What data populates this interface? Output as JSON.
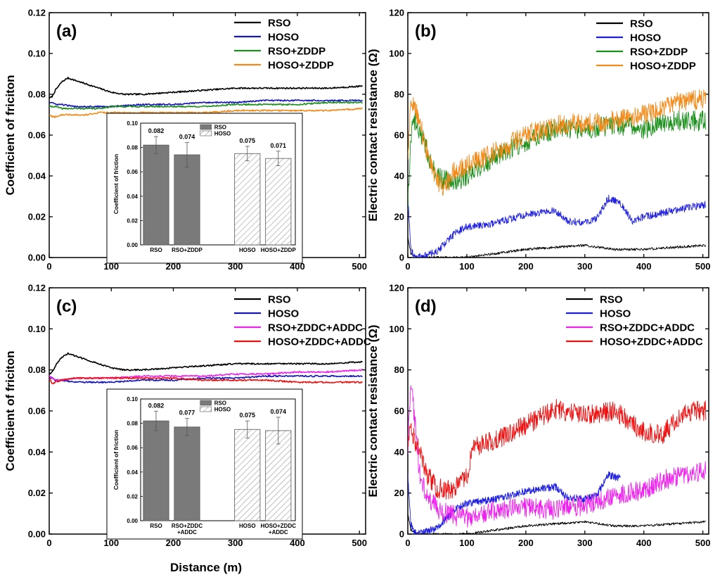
{
  "figure": {
    "xlabel_bottom": "Distance (m)"
  },
  "chart_data": [
    {
      "panel": "(a)",
      "type": "line",
      "xlabel": "",
      "ylabel": "Coefficient of friciton",
      "xlim": [
        0,
        510
      ],
      "ylim": [
        0,
        0.12
      ],
      "xticks": [
        "0",
        "100",
        "200",
        "300",
        "400",
        "500"
      ],
      "yticks": [
        "0.00",
        "0.02",
        "0.04",
        "0.06",
        "0.08",
        "0.10",
        "0.12"
      ],
      "legend": [
        "RSO",
        "HOSO",
        "RSO+ZDDP",
        "HOSO+ZDDP"
      ],
      "colors": [
        "#000000",
        "#1515b8",
        "#1a8f1a",
        "#f28a1a"
      ],
      "series": [
        {
          "name": "RSO",
          "x": [
            0,
            5,
            10,
            20,
            30,
            40,
            60,
            80,
            100,
            120,
            150,
            200,
            250,
            300,
            350,
            400,
            450,
            505
          ],
          "y": [
            0.078,
            0.079,
            0.082,
            0.086,
            0.088,
            0.087,
            0.085,
            0.083,
            0.081,
            0.08,
            0.08,
            0.081,
            0.082,
            0.083,
            0.083,
            0.083,
            0.083,
            0.084
          ]
        },
        {
          "name": "HOSO",
          "x": [
            0,
            5,
            10,
            20,
            40,
            60,
            80,
            100,
            150,
            200,
            250,
            300,
            350,
            400,
            450,
            505
          ],
          "y": [
            0.076,
            0.076,
            0.075,
            0.075,
            0.074,
            0.074,
            0.074,
            0.074,
            0.075,
            0.075,
            0.076,
            0.076,
            0.077,
            0.077,
            0.077,
            0.077
          ]
        },
        {
          "name": "RSO+ZDDP",
          "x": [
            0,
            5,
            10,
            20,
            40,
            60,
            80,
            100,
            150,
            200,
            250,
            300,
            350,
            400,
            450,
            505
          ],
          "y": [
            0.074,
            0.074,
            0.074,
            0.073,
            0.073,
            0.073,
            0.073,
            0.074,
            0.074,
            0.074,
            0.074,
            0.075,
            0.075,
            0.075,
            0.076,
            0.076
          ]
        },
        {
          "name": "HOSO+ZDDP",
          "x": [
            0,
            5,
            10,
            20,
            40,
            60,
            80,
            100,
            150,
            200,
            250,
            300,
            350,
            400,
            450,
            505
          ],
          "y": [
            0.07,
            0.069,
            0.069,
            0.07,
            0.07,
            0.07,
            0.071,
            0.071,
            0.071,
            0.071,
            0.071,
            0.072,
            0.072,
            0.072,
            0.072,
            0.073
          ]
        }
      ],
      "inset": {
        "type": "bar",
        "ylabel": "Coefficient of friction",
        "ylim": [
          0,
          0.1
        ],
        "yticks": [
          "0.00",
          "0.02",
          "0.04",
          "0.06",
          "0.08",
          "0.10"
        ],
        "legend": [
          "RSO",
          "HOSO"
        ],
        "categories": [
          "RSO",
          "RSO+ZDDP",
          "HOSO",
          "HOSO+ZDDP"
        ],
        "values": [
          0.082,
          0.074,
          0.075,
          0.071
        ],
        "value_labels": [
          "0.082",
          "0.074",
          "0.075",
          "0.071"
        ],
        "errors": [
          0.007,
          0.01,
          0.006,
          0.006
        ],
        "groups": [
          "RSO",
          "RSO",
          "HOSO",
          "HOSO"
        ]
      }
    },
    {
      "panel": "(b)",
      "type": "line",
      "xlabel": "",
      "ylabel": "Electric contact resistance (Ω)",
      "xlim": [
        0,
        510
      ],
      "ylim": [
        0,
        120
      ],
      "xticks": [
        "0",
        "100",
        "200",
        "300",
        "400",
        "500"
      ],
      "yticks": [
        "0",
        "20",
        "40",
        "60",
        "80",
        "100",
        "120"
      ],
      "legend": [
        "RSO",
        "HOSO",
        "RSO+ZDDP",
        "HOSO+ZDDP"
      ],
      "colors": [
        "#000000",
        "#1e1ee0",
        "#1a8f1a",
        "#f28a1a"
      ],
      "series": [
        {
          "name": "RSO",
          "x": [
            0,
            5,
            15,
            50,
            100,
            150,
            200,
            250,
            300,
            350,
            400,
            450,
            505
          ],
          "y": [
            10,
            2,
            0,
            0,
            0,
            2,
            4,
            5,
            6,
            4,
            4,
            5,
            6
          ]
        },
        {
          "name": "HOSO",
          "x": [
            0,
            5,
            10,
            15,
            30,
            50,
            80,
            100,
            150,
            200,
            250,
            270,
            300,
            320,
            340,
            360,
            380,
            400,
            450,
            505
          ],
          "y": [
            30,
            5,
            1,
            0,
            1,
            3,
            12,
            15,
            17,
            21,
            23,
            18,
            17,
            19,
            29,
            27,
            18,
            20,
            23,
            26
          ]
        },
        {
          "name": "RSO+ZDDP",
          "x": [
            0,
            5,
            10,
            20,
            30,
            40,
            50,
            60,
            80,
            100,
            150,
            200,
            250,
            300,
            350,
            400,
            450,
            505
          ],
          "y": [
            25,
            60,
            68,
            62,
            55,
            45,
            40,
            38,
            37,
            40,
            50,
            57,
            63,
            63,
            65,
            63,
            67,
            67
          ]
        },
        {
          "name": "HOSO+ZDDP",
          "x": [
            0,
            5,
            10,
            20,
            30,
            40,
            50,
            60,
            80,
            100,
            150,
            200,
            250,
            300,
            350,
            400,
            450,
            505
          ],
          "y": [
            50,
            74,
            76,
            66,
            55,
            45,
            38,
            33,
            43,
            45,
            52,
            60,
            65,
            66,
            67,
            70,
            76,
            78
          ]
        }
      ]
    },
    {
      "panel": "(c)",
      "type": "line",
      "xlabel": "Distance (m)",
      "ylabel": "Coefficient of friciton",
      "xlim": [
        0,
        510
      ],
      "ylim": [
        0,
        0.12
      ],
      "xticks": [
        "0",
        "100",
        "200",
        "300",
        "400",
        "500"
      ],
      "yticks": [
        "0.00",
        "0.02",
        "0.04",
        "0.06",
        "0.08",
        "0.10",
        "0.12"
      ],
      "legend": [
        "RSO",
        "HOSO",
        "RSO+ZDDC+ADDC",
        "HOSO+ZDDC+ADDC"
      ],
      "colors": [
        "#000000",
        "#1515b8",
        "#ee22ee",
        "#ee1111"
      ],
      "series": [
        {
          "name": "RSO",
          "x": [
            0,
            5,
            10,
            20,
            30,
            40,
            60,
            80,
            100,
            120,
            150,
            200,
            250,
            300,
            350,
            400,
            450,
            505
          ],
          "y": [
            0.078,
            0.079,
            0.082,
            0.086,
            0.088,
            0.087,
            0.085,
            0.083,
            0.081,
            0.08,
            0.08,
            0.081,
            0.082,
            0.083,
            0.083,
            0.083,
            0.083,
            0.084
          ]
        },
        {
          "name": "HOSO",
          "x": [
            0,
            5,
            10,
            20,
            40,
            60,
            80,
            100,
            150,
            200,
            250,
            300,
            350,
            400,
            450,
            505
          ],
          "y": [
            0.076,
            0.076,
            0.075,
            0.075,
            0.074,
            0.074,
            0.074,
            0.074,
            0.075,
            0.075,
            0.076,
            0.076,
            0.077,
            0.077,
            0.077,
            0.077
          ]
        },
        {
          "name": "RSO+ZDDC+ADDC",
          "x": [
            0,
            5,
            10,
            20,
            40,
            60,
            80,
            100,
            150,
            200,
            250,
            300,
            350,
            400,
            450,
            505
          ],
          "y": [
            0.077,
            0.076,
            0.075,
            0.075,
            0.076,
            0.076,
            0.076,
            0.076,
            0.077,
            0.077,
            0.077,
            0.078,
            0.078,
            0.079,
            0.079,
            0.08
          ]
        },
        {
          "name": "HOSO+ZDDC+ADDC",
          "x": [
            0,
            5,
            10,
            20,
            40,
            60,
            80,
            100,
            150,
            200,
            250,
            300,
            350,
            400,
            450,
            505
          ],
          "y": [
            0.076,
            0.073,
            0.074,
            0.075,
            0.076,
            0.076,
            0.076,
            0.076,
            0.076,
            0.076,
            0.075,
            0.075,
            0.075,
            0.074,
            0.074,
            0.074
          ]
        }
      ],
      "inset": {
        "type": "bar",
        "ylabel": "Coefficient of friction",
        "ylim": [
          0,
          0.1
        ],
        "yticks": [
          "0.00",
          "0.02",
          "0.04",
          "0.06",
          "0.08",
          "0.10"
        ],
        "legend": [
          "RSO",
          "HOSO"
        ],
        "categories": [
          "RSO",
          "RSO+ZDDC +ADDC",
          "HOSO",
          "HOSO+ZDDC +ADDC"
        ],
        "values": [
          0.082,
          0.077,
          0.075,
          0.074
        ],
        "value_labels": [
          "0.082",
          "0.077",
          "0.075",
          "0.074"
        ],
        "errors": [
          0.008,
          0.007,
          0.007,
          0.011
        ],
        "groups": [
          "RSO",
          "RSO",
          "HOSO",
          "HOSO"
        ]
      }
    },
    {
      "panel": "(d)",
      "type": "line",
      "xlabel": "Distance (m)",
      "ylabel": "Electric contact resistance (Ω)",
      "xlim": [
        0,
        510
      ],
      "ylim": [
        0,
        120
      ],
      "xticks": [
        "0",
        "100",
        "200",
        "300",
        "400",
        "500"
      ],
      "yticks": [
        "0",
        "20",
        "40",
        "60",
        "80",
        "100",
        "120"
      ],
      "legend": [
        "RSO",
        "HOSO",
        "RSO+ZDDC+ADDC",
        "HOSO+ZDDC+ADDC"
      ],
      "colors": [
        "#000000",
        "#1e1ee0",
        "#ee22ee",
        "#ee1111"
      ],
      "series": [
        {
          "name": "RSO",
          "x": [
            0,
            5,
            15,
            50,
            100,
            150,
            200,
            250,
            300,
            350,
            400,
            450,
            505
          ],
          "y": [
            10,
            2,
            0,
            0,
            0,
            2,
            4,
            5,
            6,
            4,
            4,
            5,
            6
          ]
        },
        {
          "name": "HOSO",
          "x": [
            0,
            5,
            10,
            15,
            30,
            50,
            80,
            100,
            150,
            200,
            250,
            270,
            300,
            320,
            340,
            360
          ],
          "y": [
            30,
            5,
            1,
            0,
            1,
            3,
            12,
            15,
            17,
            21,
            23,
            18,
            17,
            19,
            29,
            27
          ]
        },
        {
          "name": "RSO+ZDDC+ADDC",
          "x": [
            0,
            5,
            10,
            20,
            30,
            50,
            80,
            100,
            150,
            200,
            250,
            300,
            350,
            400,
            450,
            505
          ],
          "y": [
            40,
            75,
            60,
            30,
            20,
            12,
            9,
            8,
            12,
            13,
            12,
            14,
            18,
            22,
            28,
            31
          ]
        },
        {
          "name": "HOSO+ZDDC+ADDC",
          "x": [
            0,
            5,
            10,
            20,
            30,
            50,
            80,
            100,
            110,
            130,
            150,
            200,
            250,
            300,
            350,
            400,
            430,
            460,
            480,
            505
          ],
          "y": [
            45,
            50,
            47,
            40,
            30,
            22,
            22,
            28,
            42,
            44,
            46,
            53,
            61,
            58,
            60,
            50,
            48,
            57,
            60,
            60
          ]
        }
      ]
    }
  ]
}
